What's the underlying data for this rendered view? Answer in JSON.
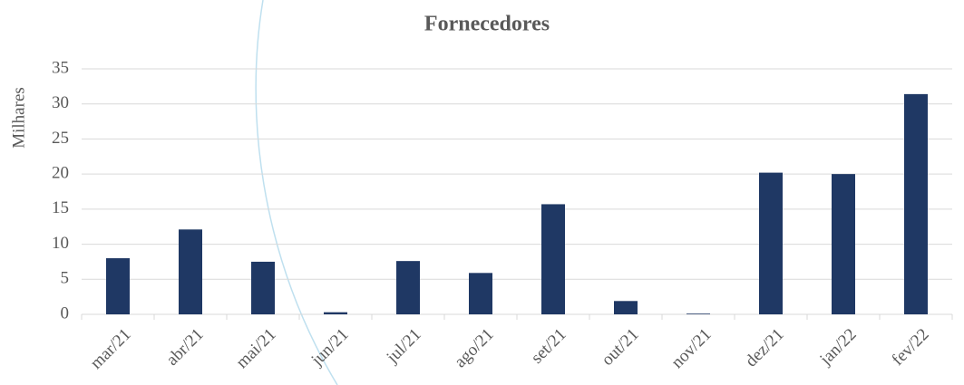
{
  "chart_data": {
    "type": "bar",
    "title": "Fornecedores",
    "y_label": "Milhares",
    "categories": [
      "mar/21",
      "abr/21",
      "mai/21",
      "jun/21",
      "jul/21",
      "ago/21",
      "set/21",
      "out/21",
      "nov/21",
      "dez/21",
      "jan/22",
      "fev/22"
    ],
    "values": [
      8.0,
      12.1,
      7.5,
      0.3,
      7.6,
      5.9,
      15.7,
      1.9,
      0.1,
      20.2,
      20.0,
      31.4
    ],
    "color": "#1f3864",
    "ylim": [
      0,
      35
    ],
    "yticks": [
      0,
      5,
      10,
      15,
      20,
      25,
      30,
      35
    ],
    "grid": true
  }
}
